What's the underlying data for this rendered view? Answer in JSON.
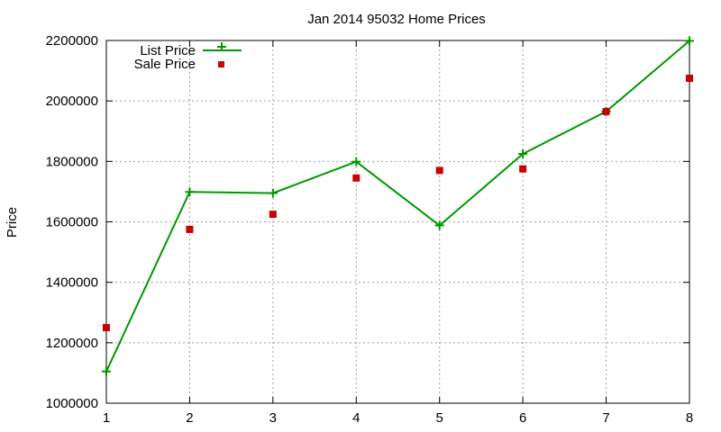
{
  "chart_data": {
    "type": "line",
    "title": "Jan 2014 95032 Home Prices",
    "xlabel": "",
    "ylabel": "Price",
    "x": [
      1,
      2,
      3,
      4,
      5,
      6,
      7,
      8
    ],
    "xlim": [
      1,
      8
    ],
    "ylim": [
      1000000,
      2200000
    ],
    "xticks": [
      "1",
      "2",
      "3",
      "4",
      "5",
      "6",
      "7",
      "8"
    ],
    "yticks": [
      "1000000",
      "1200000",
      "1400000",
      "1600000",
      "1800000",
      "2000000",
      "2200000"
    ],
    "grid": true,
    "legend_position": "top-left",
    "series": [
      {
        "name": "List Price",
        "style": "line with plus markers",
        "color": "#009900",
        "values": [
          1105000,
          1699000,
          1695000,
          1799000,
          1588000,
          1825000,
          1965000,
          2199000
        ]
      },
      {
        "name": "Sale Price",
        "style": "square markers",
        "color": "#cc0000",
        "values": [
          1250000,
          1575000,
          1625000,
          1745000,
          1770000,
          1775000,
          1965000,
          2075000
        ]
      }
    ]
  }
}
